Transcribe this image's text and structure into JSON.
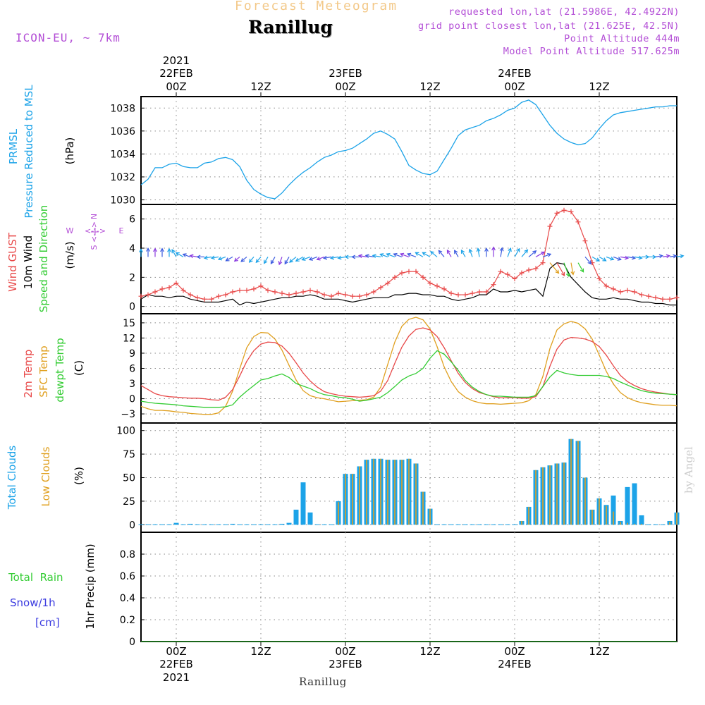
{
  "header": {
    "title": "Forecast Meteogram",
    "station": "Ranillug",
    "model": "ICON-EU, ~ 7km",
    "requested": "requested lon,lat (21.5986E, 42.4922N)",
    "grid_point": "grid point closest lon,lat (21.625E, 42.5N)",
    "point_altitude": "Point Altitude 444m",
    "model_altitude": "Model Point Altitude 517.625m"
  },
  "footer": {
    "station": "Ranillug",
    "watermark": "by Angel"
  },
  "colors": {
    "pressure": "#1ca3e8",
    "wind_gust": "#e84848",
    "wind_speed": "#000000",
    "direction_label": "#33cc33",
    "compass": "#b34ed6",
    "temp_2m": "#e84848",
    "temp_sfc": "#e0a020",
    "dewpoint": "#33cc33",
    "total_clouds": "#1ca3e8",
    "low_clouds": "#e0a020",
    "rain": "#33cc33",
    "snow": "#3b3be0"
  },
  "time_axis": {
    "top_ticks": [
      {
        "label": "00Z",
        "date": "22FEB",
        "year": "2021"
      },
      {
        "label": "12Z"
      },
      {
        "label": "00Z",
        "date": "23FEB"
      },
      {
        "label": "12Z"
      },
      {
        "label": "00Z",
        "date": "24FEB"
      },
      {
        "label": "12Z"
      }
    ],
    "bottom_ticks": [
      {
        "label": "00Z",
        "date": "22FEB",
        "year": "2021"
      },
      {
        "label": "12Z"
      },
      {
        "label": "00Z",
        "date": "23FEB"
      },
      {
        "label": "12Z"
      },
      {
        "label": "00Z",
        "date": "24FEB"
      },
      {
        "label": "12Z"
      }
    ],
    "tick_hours": [
      0,
      12,
      24,
      36,
      48,
      60
    ],
    "hour_range": [
      -5,
      71
    ]
  },
  "labels": {
    "p1": [
      "PRMSL",
      "Pressure Reduced to MSL"
    ],
    "p1_unit": "(hPa)",
    "p2": [
      "Wind GUST",
      "10m Wind",
      "Speed and Direction"
    ],
    "p2_unit": "(m/s)",
    "compass": {
      "n": "N",
      "s": "S",
      "w": "W",
      "e": "E",
      "arrows": "<-|->"
    },
    "p3": [
      "2m Temp",
      "SFC Temp",
      "dewpt Temp"
    ],
    "p3_unit": "(C)",
    "p4": [
      "Total Clouds",
      "Low Clouds"
    ],
    "p4_unit": "(%)",
    "p5_rain": "Total  Rain",
    "p5_snow": "Snow/1h",
    "p5_cm": "[cm]",
    "p5_axis": "1hr Precip (mm)"
  },
  "chart_data": [
    {
      "type": "line",
      "name": "pressure",
      "ylabel": "(hPa)",
      "ylim": [
        1029.6,
        1039.0
      ],
      "yticks": [
        1030,
        1032,
        1034,
        1036,
        1038
      ],
      "x": [
        -5,
        -4,
        -3,
        -2,
        -1,
        0,
        1,
        2,
        3,
        4,
        5,
        6,
        7,
        8,
        9,
        10,
        11,
        12,
        13,
        14,
        15,
        16,
        17,
        18,
        19,
        20,
        21,
        22,
        23,
        24,
        25,
        26,
        27,
        28,
        29,
        30,
        31,
        32,
        33,
        34,
        35,
        36,
        37,
        38,
        39,
        40,
        41,
        42,
        43,
        44,
        45,
        46,
        47,
        48,
        49,
        50,
        51,
        52,
        53,
        54,
        55,
        56,
        57,
        58,
        59,
        60,
        61,
        62,
        63,
        64,
        65,
        66,
        67,
        68,
        69,
        70,
        71
      ],
      "values": [
        1031.3,
        1031.8,
        1032.8,
        1032.8,
        1033.1,
        1033.2,
        1032.9,
        1032.8,
        1032.8,
        1033.2,
        1033.3,
        1033.6,
        1033.7,
        1033.5,
        1032.9,
        1031.7,
        1030.9,
        1030.5,
        1030.2,
        1030.1,
        1030.6,
        1031.3,
        1031.9,
        1032.4,
        1032.8,
        1033.3,
        1033.7,
        1033.9,
        1034.2,
        1034.3,
        1034.5,
        1034.9,
        1035.3,
        1035.8,
        1036.0,
        1035.7,
        1035.3,
        1034.2,
        1033.0,
        1032.6,
        1032.3,
        1032.2,
        1032.5,
        1033.5,
        1034.5,
        1035.6,
        1036.1,
        1036.3,
        1036.5,
        1036.9,
        1037.1,
        1037.4,
        1037.8,
        1038.0,
        1038.5,
        1038.7,
        1038.3,
        1037.4,
        1036.5,
        1035.8,
        1035.3,
        1035.0,
        1034.8,
        1034.9,
        1035.4,
        1036.2,
        1036.9,
        1037.4,
        1037.6,
        1037.7,
        1037.8,
        1037.9,
        1038.0,
        1038.1,
        1038.1,
        1038.2,
        1038.2
      ]
    },
    {
      "type": "line",
      "name": "wind",
      "ylabel": "(m/s)",
      "ylim": [
        -0.5,
        7.0
      ],
      "yticks": [
        0,
        2,
        4,
        6
      ],
      "x": [
        -5,
        -4,
        -3,
        -2,
        -1,
        0,
        1,
        2,
        3,
        4,
        5,
        6,
        7,
        8,
        9,
        10,
        11,
        12,
        13,
        14,
        15,
        16,
        17,
        18,
        19,
        20,
        21,
        22,
        23,
        24,
        25,
        26,
        27,
        28,
        29,
        30,
        31,
        32,
        33,
        34,
        35,
        36,
        37,
        38,
        39,
        40,
        41,
        42,
        43,
        44,
        45,
        46,
        47,
        48,
        49,
        50,
        51,
        52,
        53,
        54,
        55,
        56,
        57,
        58,
        59,
        60,
        61,
        62,
        63,
        64,
        65,
        66,
        67,
        68,
        69,
        70,
        71
      ],
      "gust": [
        0.7,
        0.8,
        1.0,
        1.2,
        1.3,
        1.6,
        1.1,
        0.8,
        0.6,
        0.5,
        0.5,
        0.7,
        0.8,
        1.0,
        1.1,
        1.1,
        1.2,
        1.4,
        1.1,
        1.0,
        0.9,
        0.8,
        0.9,
        1.0,
        1.1,
        1.0,
        0.8,
        0.7,
        0.9,
        0.8,
        0.7,
        0.7,
        0.8,
        1.0,
        1.3,
        1.6,
        2.0,
        2.3,
        2.4,
        2.4,
        2.0,
        1.6,
        1.4,
        1.2,
        0.9,
        0.8,
        0.8,
        0.9,
        1.0,
        1.0,
        1.5,
        2.4,
        2.2,
        1.9,
        2.3,
        2.5,
        2.6,
        3.0,
        5.5,
        6.4,
        6.6,
        6.5,
        5.8,
        4.5,
        3.0,
        1.9,
        1.4,
        1.2,
        1.0,
        1.1,
        1.0,
        0.8,
        0.7,
        0.6,
        0.5,
        0.5,
        0.6
      ],
      "speed": [
        0.5,
        0.8,
        0.7,
        0.7,
        0.6,
        0.7,
        0.7,
        0.5,
        0.4,
        0.3,
        0.3,
        0.3,
        0.4,
        0.5,
        0.1,
        0.3,
        0.2,
        0.3,
        0.4,
        0.5,
        0.6,
        0.6,
        0.7,
        0.7,
        0.8,
        0.7,
        0.5,
        0.5,
        0.5,
        0.4,
        0.3,
        0.4,
        0.5,
        0.6,
        0.6,
        0.6,
        0.8,
        0.8,
        0.9,
        0.9,
        0.8,
        0.8,
        0.7,
        0.7,
        0.5,
        0.4,
        0.5,
        0.6,
        0.8,
        0.8,
        1.2,
        1.0,
        1.0,
        1.1,
        1.0,
        1.1,
        1.2,
        0.7,
        2.6,
        3.0,
        2.9,
        2.0,
        1.5,
        1.0,
        0.6,
        0.5,
        0.5,
        0.6,
        0.5,
        0.5,
        0.4,
        0.3,
        0.3,
        0.2,
        0.2,
        0.1,
        0.1
      ],
      "direction_arrows_y": 3.4,
      "direction_deg": [
        0,
        0,
        0,
        0,
        0,
        330,
        300,
        290,
        280,
        270,
        260,
        260,
        250,
        240,
        230,
        230,
        220,
        220,
        210,
        210,
        200,
        210,
        230,
        240,
        250,
        250,
        250,
        260,
        260,
        260,
        270,
        270,
        280,
        280,
        280,
        290,
        290,
        290,
        290,
        290,
        300,
        300,
        310,
        320,
        330,
        330,
        330,
        340,
        350,
        0,
        0,
        10,
        20,
        30,
        40,
        50,
        60,
        70,
        140,
        150,
        160,
        170,
        150,
        140,
        120,
        120,
        110,
        110,
        100,
        100,
        100,
        90,
        90,
        80,
        80,
        80,
        80
      ],
      "compass_labels": [
        "N",
        "S",
        "W",
        "E"
      ]
    },
    {
      "type": "line",
      "name": "temperature",
      "ylabel": "(C)",
      "ylim": [
        -4.8,
        16.8
      ],
      "yticks": [
        -3,
        0,
        3,
        6,
        9,
        12,
        15
      ],
      "x": [
        -5,
        -4,
        -3,
        -2,
        -1,
        0,
        1,
        2,
        3,
        4,
        5,
        6,
        7,
        8,
        9,
        10,
        11,
        12,
        13,
        14,
        15,
        16,
        17,
        18,
        19,
        20,
        21,
        22,
        23,
        24,
        25,
        26,
        27,
        28,
        29,
        30,
        31,
        32,
        33,
        34,
        35,
        36,
        37,
        38,
        39,
        40,
        41,
        42,
        43,
        44,
        45,
        46,
        47,
        48,
        49,
        50,
        51,
        52,
        53,
        54,
        55,
        56,
        57,
        58,
        59,
        60,
        61,
        62,
        63,
        64,
        65,
        66,
        67,
        68,
        69,
        70,
        71
      ],
      "series": [
        {
          "name": "2m Temp",
          "values": [
            2.6,
            1.8,
            1.0,
            0.6,
            0.4,
            0.3,
            0.2,
            0.1,
            0.1,
            0.0,
            -0.2,
            -0.3,
            0.3,
            1.8,
            4.5,
            7.4,
            9.5,
            10.8,
            11.2,
            11.1,
            10.4,
            9.0,
            7.1,
            5.1,
            3.5,
            2.3,
            1.4,
            1.0,
            0.7,
            0.5,
            0.4,
            0.3,
            0.4,
            0.6,
            1.5,
            3.6,
            7.0,
            10.2,
            12.4,
            13.7,
            14.0,
            13.6,
            12.3,
            10.1,
            7.5,
            5.0,
            3.2,
            2.0,
            1.2,
            0.8,
            0.4,
            0.2,
            0.2,
            0.2,
            0.1,
            0.1,
            0.4,
            2.4,
            6.4,
            9.8,
            11.6,
            12.1,
            12.0,
            11.8,
            11.3,
            10.3,
            8.6,
            6.5,
            4.6,
            3.4,
            2.6,
            2.0,
            1.6,
            1.3,
            1.1,
            0.9,
            0.8
          ]
        },
        {
          "name": "SFC Temp",
          "values": [
            -1.5,
            -2.0,
            -2.3,
            -2.3,
            -2.4,
            -2.6,
            -2.7,
            -2.9,
            -3.0,
            -3.1,
            -3.1,
            -2.8,
            -1.5,
            1.5,
            5.9,
            10.1,
            12.3,
            13.1,
            13.0,
            11.8,
            9.6,
            6.6,
            3.7,
            1.6,
            0.6,
            0.2,
            0.0,
            -0.3,
            -0.6,
            -0.5,
            -0.4,
            -0.3,
            -0.2,
            0.3,
            2.3,
            6.8,
            11.2,
            14.3,
            15.7,
            16.1,
            15.6,
            13.8,
            10.3,
            6.3,
            3.4,
            1.4,
            0.3,
            -0.4,
            -0.8,
            -1.0,
            -1.0,
            -1.1,
            -1.0,
            -0.9,
            -0.8,
            -0.4,
            0.8,
            4.4,
            9.9,
            13.6,
            14.8,
            15.3,
            14.9,
            13.8,
            11.8,
            8.6,
            5.4,
            2.9,
            1.2,
            0.2,
            -0.4,
            -0.8,
            -1.0,
            -1.2,
            -1.3,
            -1.3,
            -1.4
          ]
        },
        {
          "name": "dewpt Temp",
          "values": [
            -0.5,
            -0.7,
            -0.9,
            -1.0,
            -1.1,
            -1.2,
            -1.4,
            -1.5,
            -1.6,
            -1.7,
            -1.7,
            -1.7,
            -1.6,
            -1.2,
            0.3,
            1.5,
            2.6,
            3.7,
            4.0,
            4.5,
            4.9,
            4.2,
            3.0,
            2.5,
            2.0,
            1.3,
            0.8,
            0.6,
            0.3,
            0.2,
            -0.1,
            -0.5,
            -0.3,
            0.0,
            0.3,
            1.2,
            2.4,
            3.7,
            4.5,
            5.0,
            6.0,
            8.0,
            9.5,
            8.8,
            7.3,
            5.6,
            3.6,
            2.3,
            1.4,
            0.8,
            0.5,
            0.5,
            0.4,
            0.3,
            0.3,
            0.3,
            0.6,
            2.4,
            4.3,
            5.6,
            5.1,
            4.8,
            4.6,
            4.6,
            4.6,
            4.6,
            4.4,
            4.0,
            3.3,
            2.7,
            2.1,
            1.6,
            1.3,
            1.1,
            1.0,
            0.9,
            0.8
          ]
        }
      ]
    },
    {
      "type": "bar",
      "name": "clouds",
      "ylabel": "(%)",
      "ylim": [
        -8,
        108
      ],
      "yticks": [
        0,
        25,
        50,
        75,
        100
      ],
      "x": [
        -5,
        -4,
        -3,
        -2,
        -1,
        0,
        1,
        2,
        3,
        4,
        5,
        6,
        7,
        8,
        9,
        10,
        11,
        12,
        13,
        14,
        15,
        16,
        17,
        18,
        19,
        20,
        21,
        22,
        23,
        24,
        25,
        26,
        27,
        28,
        29,
        30,
        31,
        32,
        33,
        34,
        35,
        36,
        37,
        38,
        39,
        40,
        41,
        42,
        43,
        44,
        45,
        46,
        47,
        48,
        49,
        50,
        51,
        52,
        53,
        54,
        55,
        56,
        57,
        58,
        59,
        60,
        61,
        62,
        63,
        64,
        65,
        66,
        67,
        68,
        69,
        70,
        71
      ],
      "series": [
        {
          "name": "Total Clouds",
          "values": [
            0,
            0,
            0,
            0,
            0,
            2,
            0,
            1,
            0,
            0,
            0,
            0,
            0,
            1,
            0,
            0,
            0,
            0,
            0,
            0,
            1,
            2,
            16,
            45,
            13,
            0,
            0,
            0,
            25,
            54,
            54,
            62,
            69,
            70,
            70,
            69,
            69,
            69,
            70,
            65,
            35,
            17,
            0,
            0,
            0,
            0,
            0,
            0,
            0,
            0,
            0,
            0,
            0,
            0,
            4,
            19,
            58,
            61,
            63,
            65,
            66,
            91,
            89,
            50,
            16,
            28,
            21,
            31,
            4,
            40,
            44,
            10,
            0,
            0,
            0,
            4,
            13
          ]
        },
        {
          "name": "Low Clouds",
          "values": [
            0,
            0,
            0,
            0,
            0,
            0,
            0,
            0,
            0,
            0,
            0,
            0,
            0,
            0,
            0,
            0,
            0,
            0,
            0,
            0,
            0,
            0,
            0,
            0,
            0,
            0,
            0,
            0,
            24,
            54,
            54,
            62,
            69,
            70,
            70,
            69,
            69,
            69,
            70,
            65,
            35,
            17,
            0,
            0,
            0,
            0,
            0,
            0,
            0,
            0,
            0,
            0,
            0,
            0,
            4,
            19,
            58,
            61,
            63,
            65,
            66,
            91,
            89,
            50,
            16,
            28,
            20,
            14,
            3,
            2,
            1,
            1,
            0,
            0,
            0,
            3,
            13
          ]
        }
      ]
    },
    {
      "type": "bar",
      "name": "precipitation",
      "ylabel": "1hr Precip (mm)",
      "ylim": [
        0,
        1.0
      ],
      "yticks": [
        0,
        0.2,
        0.4,
        0.6,
        0.8
      ],
      "x": [
        -5,
        71
      ],
      "series": [
        {
          "name": "Total  Rain",
          "values": [
            0,
            0
          ]
        },
        {
          "name": "Snow/1h",
          "values": [
            0,
            0
          ]
        }
      ]
    }
  ]
}
